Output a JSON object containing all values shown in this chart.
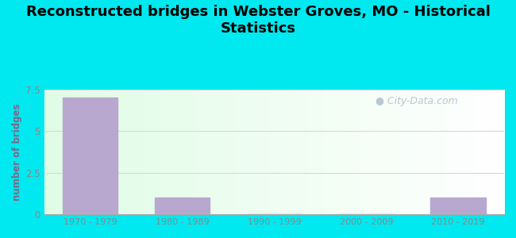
{
  "title": "Reconstructed bridges in Webster Groves, MO - Historical\nStatistics",
  "categories": [
    "1970 - 1979",
    "1980 - 1989",
    "1990 - 1999",
    "2000 - 2009",
    "2010 - 2019"
  ],
  "values": [
    7,
    1,
    0,
    0,
    1
  ],
  "bar_color": "#b8a8d0",
  "ylabel": "number of bridges",
  "ylim": [
    0,
    7.5
  ],
  "yticks": [
    0,
    2.5,
    5,
    7.5
  ],
  "background_outer": "#00e8f0",
  "title_fontsize": 13,
  "ylabel_color": "#7a6a8a",
  "tick_label_color": "#888888",
  "watermark_text": "City-Data.com",
  "watermark_color": "#b8c8d0",
  "grid_color": "#d8d8d8"
}
